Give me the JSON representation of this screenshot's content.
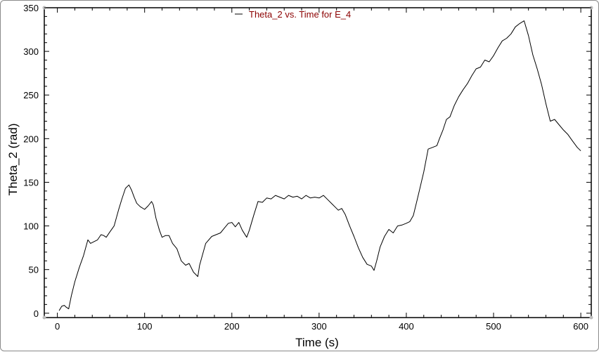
{
  "chart_data": {
    "type": "line",
    "xlabel": "Time (s)",
    "ylabel": "Theta_2 (rad)",
    "xlim": [
      -15,
      612
    ],
    "ylim": [
      -5,
      350
    ],
    "xticks": [
      0,
      100,
      200,
      300,
      400,
      500,
      600
    ],
    "yticks": [
      0,
      50,
      100,
      150,
      200,
      250,
      300,
      350
    ],
    "grid": false,
    "legend_position": "top-center",
    "colors": {
      "line": "#000000",
      "legend_text": "#8b0000",
      "frame": "#000000"
    },
    "series": [
      {
        "name": "Theta_2 vs. Time for E_4",
        "x": [
          2,
          5,
          8,
          10,
          13,
          16,
          20,
          25,
          30,
          35,
          38,
          42,
          46,
          50,
          53,
          56,
          60,
          65,
          70,
          74,
          78,
          82,
          85,
          88,
          91,
          95,
          100,
          104,
          108,
          110,
          113,
          117,
          120,
          124,
          128,
          132,
          137,
          142,
          147,
          151,
          156,
          161,
          163,
          170,
          177,
          182,
          187,
          191,
          196,
          200,
          204,
          208,
          212,
          217,
          220,
          225,
          230,
          235,
          240,
          245,
          250,
          255,
          260,
          265,
          270,
          275,
          280,
          285,
          290,
          295,
          300,
          305,
          310,
          315,
          318,
          322,
          326,
          330,
          335,
          340,
          345,
          350,
          355,
          360,
          363,
          366,
          370,
          375,
          380,
          385,
          390,
          395,
          400,
          404,
          408,
          412,
          416,
          420,
          425,
          430,
          435,
          438,
          442,
          446,
          450,
          455,
          460,
          465,
          470,
          475,
          480,
          485,
          490,
          495,
          500,
          505,
          510,
          515,
          520,
          525,
          530,
          535,
          540,
          545,
          550,
          555,
          560,
          565,
          570,
          575,
          580,
          585,
          590,
          596,
          600
        ],
        "y": [
          3,
          8,
          9,
          7,
          5,
          20,
          36,
          52,
          66,
          84,
          80,
          82,
          84,
          90,
          89,
          87,
          93,
          100,
          118,
          131,
          143,
          147,
          141,
          133,
          126,
          122,
          119,
          123,
          128,
          124,
          109,
          95,
          87,
          89,
          89,
          80,
          74,
          60,
          55,
          57,
          47,
          42,
          55,
          80,
          88,
          90,
          92,
          97,
          103,
          104,
          99,
          104,
          95,
          87,
          95,
          112,
          128,
          127,
          132,
          131,
          135,
          133,
          131,
          135,
          133,
          134,
          131,
          135,
          132,
          133,
          132,
          135,
          130,
          125,
          122,
          118,
          120,
          113,
          100,
          88,
          75,
          64,
          56,
          54,
          49,
          60,
          76,
          88,
          96,
          92,
          100,
          101,
          103,
          105,
          112,
          128,
          145,
          162,
          188,
          190,
          192,
          200,
          210,
          222,
          225,
          238,
          248,
          256,
          263,
          272,
          280,
          282,
          290,
          288,
          295,
          304,
          312,
          315,
          320,
          328,
          332,
          335,
          318,
          296,
          280,
          262,
          240,
          220,
          222,
          216,
          210,
          205,
          198,
          190,
          186
        ]
      }
    ]
  }
}
